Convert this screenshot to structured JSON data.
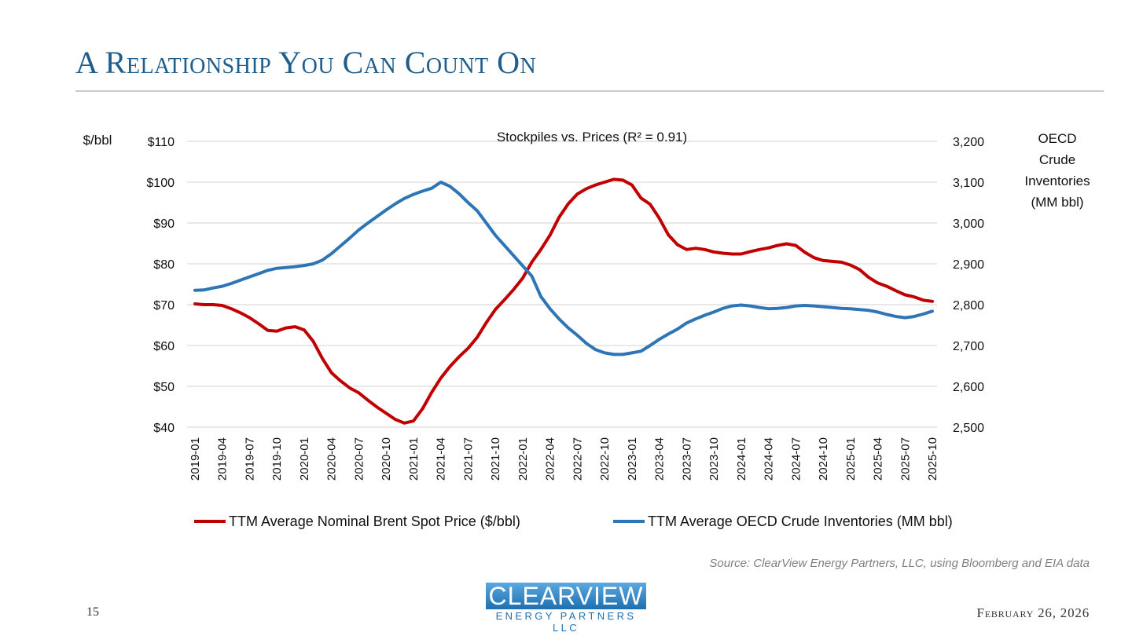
{
  "slide": {
    "title": "A Relationship You Can Count On",
    "source": "Source: ClearView Energy Partners, LLC, using Bloomberg and EIA data",
    "page_number": "15",
    "date": "February 26, 2026",
    "logo_main": "CLEARVIEW",
    "logo_sub": "ENERGY PARTNERS LLC"
  },
  "chart_data": {
    "type": "line",
    "title": "Stockpiles vs. Prices (R² = 0.91)",
    "ylabel_left": "$/bbl",
    "ylabel_right": [
      "OECD",
      "Crude",
      "Inventories",
      "(MM bbl)"
    ],
    "ylim_left": [
      40,
      110
    ],
    "ylim_right": [
      2500,
      3200
    ],
    "yticks_left": [
      "$110",
      "$100",
      "$90",
      "$80",
      "$70",
      "$60",
      "$50",
      "$40"
    ],
    "yticks_right": [
      "3,200",
      "3,100",
      "3,000",
      "2,900",
      "2,800",
      "2,700",
      "2,600",
      "2,500"
    ],
    "x": [
      "2019-01",
      "2019-02",
      "2019-03",
      "2019-04",
      "2019-05",
      "2019-06",
      "2019-07",
      "2019-08",
      "2019-09",
      "2019-10",
      "2019-11",
      "2019-12",
      "2020-01",
      "2020-02",
      "2020-03",
      "2020-04",
      "2020-05",
      "2020-06",
      "2020-07",
      "2020-08",
      "2020-09",
      "2020-10",
      "2020-11",
      "2020-12",
      "2021-01",
      "2021-02",
      "2021-03",
      "2021-04",
      "2021-05",
      "2021-06",
      "2021-07",
      "2021-08",
      "2021-09",
      "2021-10",
      "2021-11",
      "2021-12",
      "2022-01",
      "2022-02",
      "2022-03",
      "2022-04",
      "2022-05",
      "2022-06",
      "2022-07",
      "2022-08",
      "2022-09",
      "2022-10",
      "2022-11",
      "2022-12",
      "2023-01",
      "2023-02",
      "2023-03",
      "2023-04",
      "2023-05",
      "2023-06",
      "2023-07",
      "2023-08",
      "2023-09",
      "2023-10",
      "2023-11",
      "2023-12",
      "2024-01",
      "2024-02",
      "2024-03",
      "2024-04",
      "2024-05",
      "2024-06",
      "2024-07",
      "2024-08",
      "2024-09",
      "2024-10",
      "2024-11",
      "2024-12",
      "2025-01",
      "2025-02",
      "2025-03",
      "2025-04",
      "2025-05",
      "2025-06",
      "2025-07",
      "2025-08",
      "2025-09",
      "2025-10"
    ],
    "xtick_labels": [
      "2019-01",
      "2019-04",
      "2019-07",
      "2019-10",
      "2020-01",
      "2020-04",
      "2020-07",
      "2020-10",
      "2021-01",
      "2021-04",
      "2021-07",
      "2021-10",
      "2022-01",
      "2022-04",
      "2022-07",
      "2022-10",
      "2023-01",
      "2023-04",
      "2023-07",
      "2023-10",
      "2024-01",
      "2024-04",
      "2024-07",
      "2024-10",
      "2025-01",
      "2025-04",
      "2025-07",
      "2025-10"
    ],
    "series": [
      {
        "name": "TTM Average Nominal Brent Spot Price ($/bbl)",
        "axis": "left",
        "color": "#c00000",
        "values": [
          70.2,
          70.0,
          70.0,
          69.8,
          69.0,
          68.0,
          66.8,
          65.3,
          63.7,
          63.5,
          64.3,
          64.6,
          63.8,
          61.0,
          56.8,
          53.3,
          51.3,
          49.6,
          48.4,
          46.6,
          44.9,
          43.4,
          41.9,
          41.0,
          41.5,
          44.5,
          48.5,
          52.0,
          54.8,
          57.2,
          59.3,
          62.0,
          65.6,
          68.8,
          71.2,
          73.7,
          76.5,
          80.4,
          83.5,
          87.0,
          91.4,
          94.7,
          97.1,
          98.4,
          99.3,
          100.0,
          100.7,
          100.5,
          99.3,
          96.1,
          94.6,
          91.2,
          87.1,
          84.7,
          83.5,
          83.8,
          83.5,
          82.9,
          82.6,
          82.4,
          82.4,
          83.0,
          83.5,
          83.9,
          84.5,
          84.9,
          84.5,
          82.8,
          81.5,
          80.8,
          80.6,
          80.4,
          79.7,
          78.6,
          76.7,
          75.3,
          74.5,
          73.4,
          72.4,
          71.9,
          71.1,
          70.8
        ]
      },
      {
        "name": "TTM Average OECD Crude Inventories (MM bbl)",
        "axis": "right",
        "color": "#2e75b6",
        "values": [
          2835,
          2836,
          2841,
          2845,
          2852,
          2860,
          2868,
          2876,
          2884,
          2889,
          2891,
          2893,
          2896,
          2900,
          2909,
          2925,
          2944,
          2963,
          2983,
          3000,
          3016,
          3032,
          3047,
          3060,
          3070,
          3078,
          3085,
          3100,
          3090,
          3072,
          3050,
          3030,
          3000,
          2970,
          2945,
          2920,
          2895,
          2870,
          2820,
          2790,
          2765,
          2743,
          2725,
          2705,
          2690,
          2682,
          2678,
          2678,
          2682,
          2686,
          2700,
          2715,
          2728,
          2740,
          2755,
          2765,
          2774,
          2782,
          2791,
          2797,
          2799,
          2797,
          2793,
          2790,
          2791,
          2793,
          2797,
          2798,
          2797,
          2795,
          2793,
          2791,
          2790,
          2788,
          2786,
          2782,
          2776,
          2771,
          2768,
          2771,
          2777,
          2784
        ]
      }
    ],
    "legend_position": "bottom",
    "grid": true
  }
}
